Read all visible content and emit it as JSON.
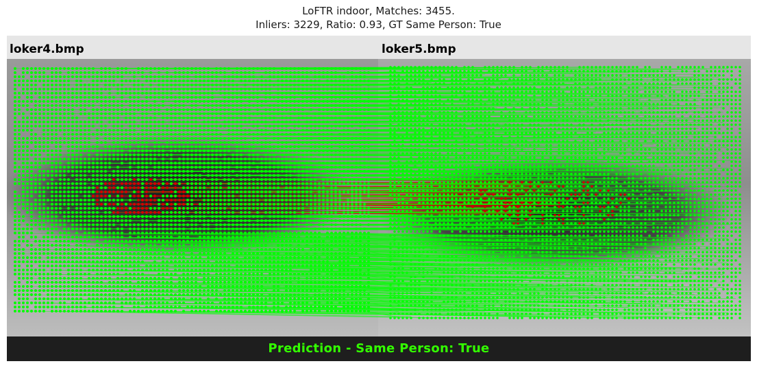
{
  "title": {
    "line1": "LoFTR indoor, Matches: 3455.",
    "line2": "Inliers: 3229, Ratio: 0.93, GT Same Person: True"
  },
  "images": {
    "left_label": "loker4.bmp",
    "right_label": "loker5.bmp"
  },
  "footer": {
    "prediction": "Prediction - Same Person: True"
  },
  "colors": {
    "inlier": "#00ff00",
    "outlier": "#d40000",
    "footer_bg": "#1e1e1e",
    "footer_text": "#33ff00",
    "header_bg": "#e6e6e6"
  },
  "stats": {
    "matches": 3455,
    "inliers": 3229,
    "ratio": 0.93,
    "gt_same_person": true
  }
}
